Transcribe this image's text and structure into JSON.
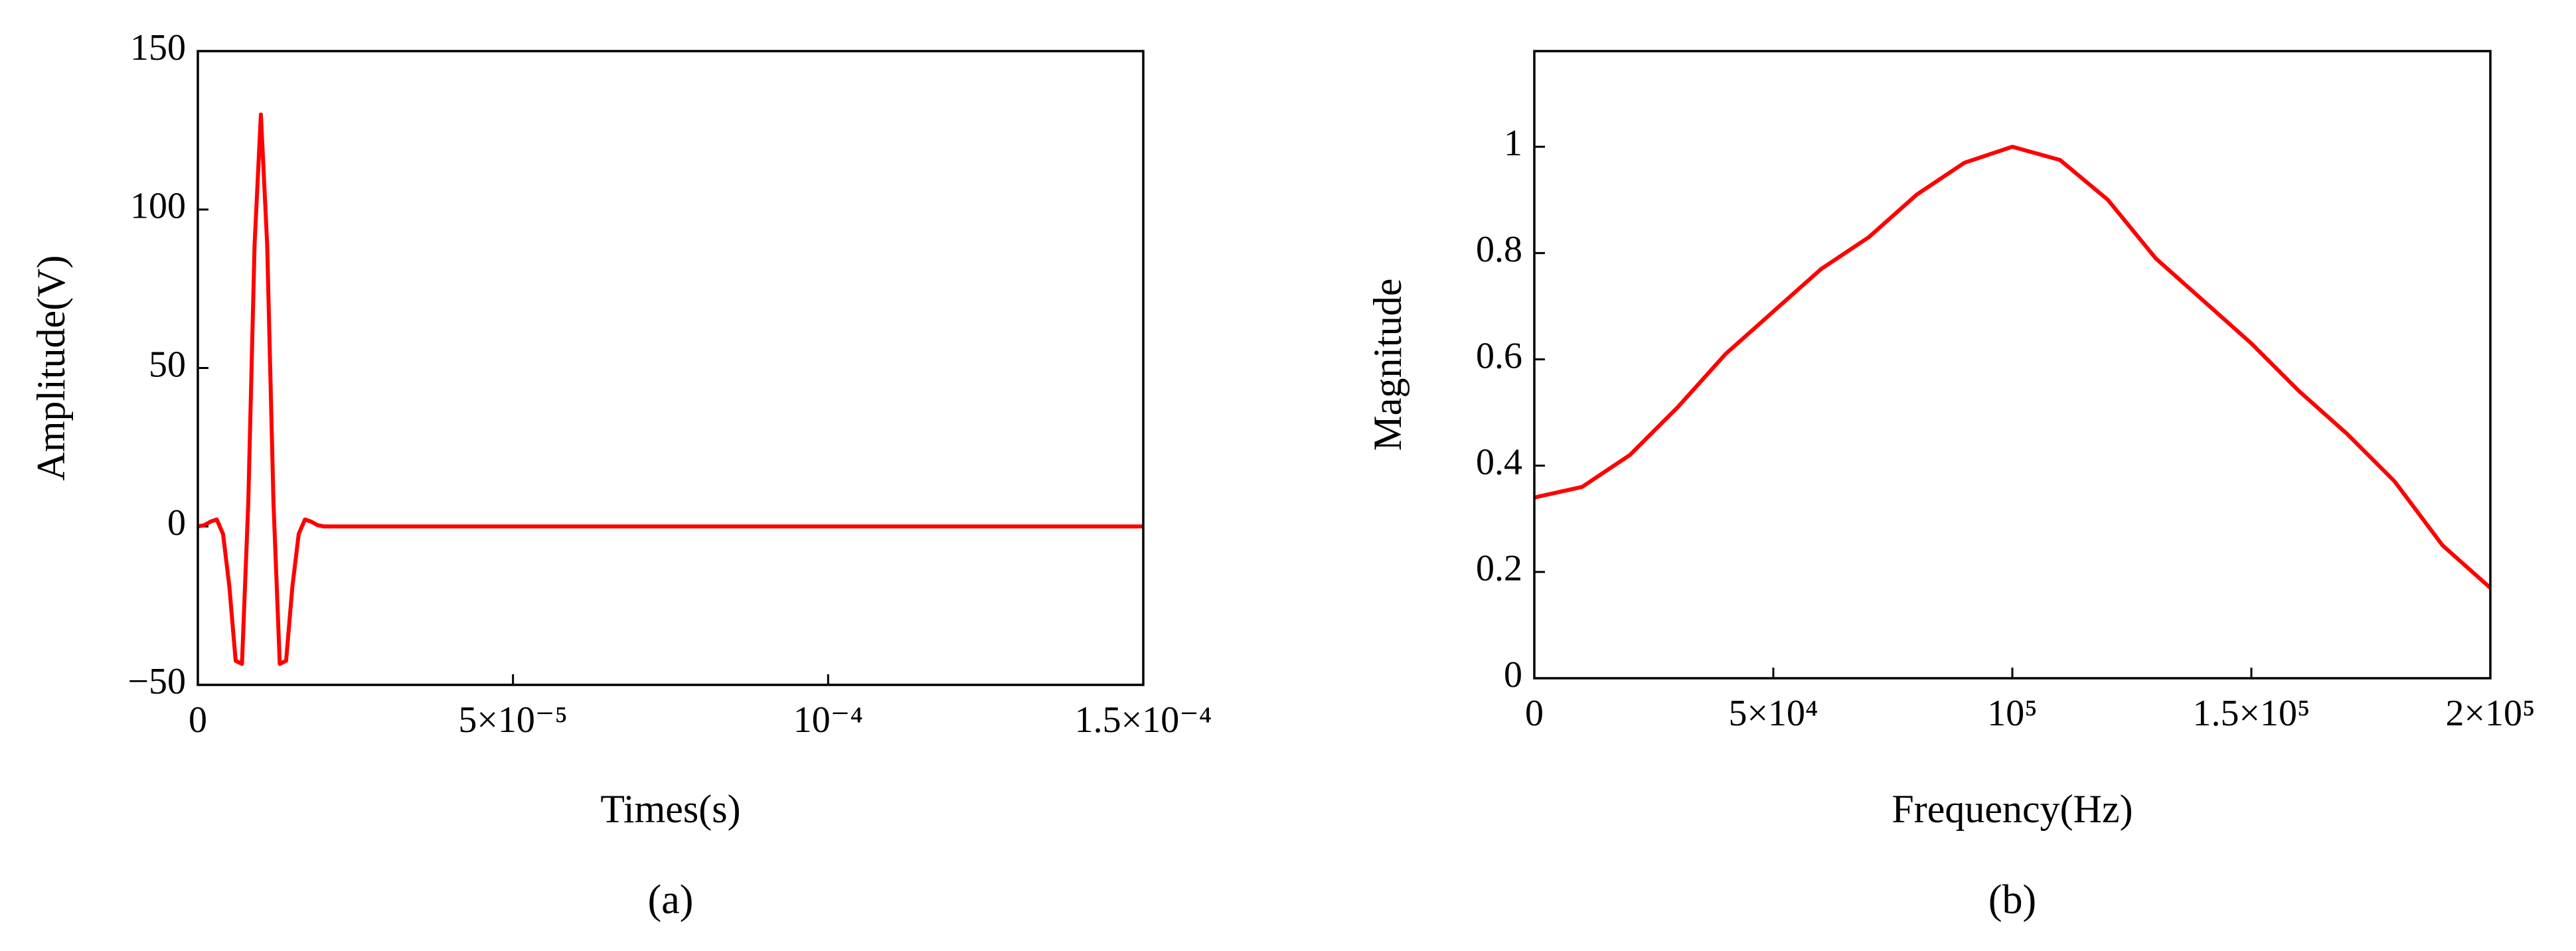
{
  "chart_data": [
    {
      "type": "line",
      "xlabel": "Times(s)",
      "ylabel": "Amplitude(V)",
      "caption": "(a)",
      "x": [
        0,
        1e-06,
        2e-06,
        3e-06,
        4e-06,
        5e-06,
        6e-06,
        7e-06,
        8e-06,
        9e-06,
        1e-05,
        1.1e-05,
        1.2e-05,
        1.3e-05,
        1.4e-05,
        1.5e-05,
        1.6e-05,
        1.7e-05,
        1.8e-05,
        1.9e-05,
        2e-05,
        2.5e-05,
        0.00015
      ],
      "series": [
        {
          "color": "#ff0000",
          "values": [
            0,
            0.4,
            1.5,
            2.2,
            -2.4,
            -19,
            -42.4,
            -43.4,
            7.4,
            88.9,
            130,
            88.9,
            7.4,
            -43.4,
            -42.4,
            -19,
            -2.4,
            2.2,
            1.5,
            0.4,
            0,
            0,
            0
          ]
        }
      ],
      "xlim": [
        0,
        0.00015
      ],
      "ylim": [
        -50,
        150
      ],
      "xticks": [
        0,
        {
          "value": 5e-05,
          "label": "5×10⁻⁵"
        },
        {
          "value": 0.0001,
          "label": "10⁻⁴"
        },
        {
          "value": 0.00015,
          "label": "1.5×10⁻⁴"
        }
      ],
      "yticks": [
        {
          "value": -50,
          "label": "−50"
        },
        0,
        50,
        100,
        150
      ]
    },
    {
      "type": "line",
      "xlabel": "Frequency(Hz)",
      "ylabel": "Magnitude",
      "caption": "(b)",
      "x": [
        0,
        10000,
        20000,
        30000,
        40000,
        50000,
        60000,
        70000,
        80000,
        90000,
        100000,
        110000,
        120000,
        130000,
        140000,
        150000,
        160000,
        170000,
        180000,
        190000,
        200000
      ],
      "series": [
        {
          "color": "#ff0000",
          "values": [
            0.34,
            0.36,
            0.42,
            0.51,
            0.61,
            0.69,
            0.77,
            0.83,
            0.91,
            0.97,
            1.0,
            0.975,
            0.9,
            0.79,
            0.71,
            0.63,
            0.54,
            0.46,
            0.37,
            0.25,
            0.17
          ]
        }
      ],
      "xlim": [
        0,
        200000
      ],
      "ylim": [
        0,
        1.18
      ],
      "xticks": [
        0,
        {
          "value": 50000,
          "label": "5×10⁴"
        },
        {
          "value": 100000,
          "label": "10⁵"
        },
        {
          "value": 150000,
          "label": "1.5×10⁵"
        },
        {
          "value": 200000,
          "label": "2×10⁵"
        }
      ],
      "yticks": [
        0,
        0.2,
        0.4,
        0.6,
        0.8,
        1
      ]
    }
  ]
}
